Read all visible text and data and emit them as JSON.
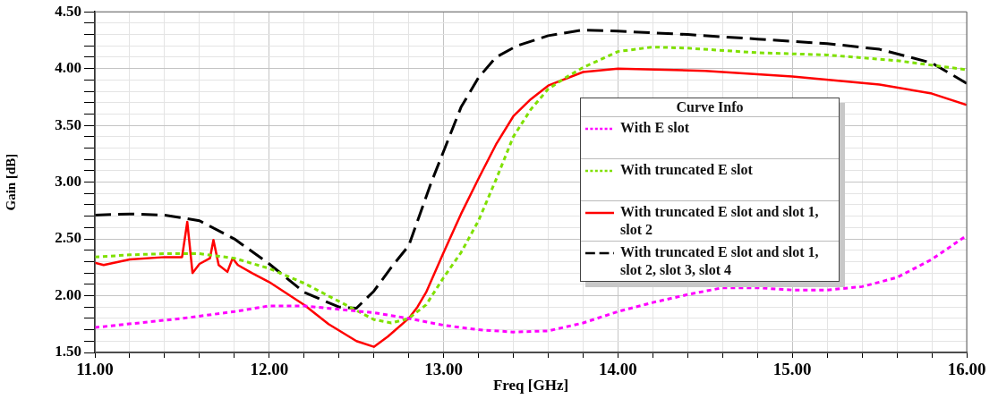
{
  "chart_data": {
    "type": "line",
    "xlabel": "Freq [GHz]",
    "ylabel": "Gain [dB]",
    "legend_title": "Curve Info",
    "legend": "right",
    "grid": true,
    "marker": "none",
    "xlim": [
      11,
      16
    ],
    "ylim": [
      1.5,
      4.5
    ],
    "xticks": [
      {
        "value": 11,
        "label": "11.00"
      },
      {
        "value": 11.2,
        "label": null
      },
      {
        "value": 11.4,
        "label": null
      },
      {
        "value": 11.6,
        "label": null
      },
      {
        "value": 11.8,
        "label": null
      },
      {
        "value": 12,
        "label": "12.00"
      },
      {
        "value": 12.2,
        "label": null
      },
      {
        "value": 12.4,
        "label": null
      },
      {
        "value": 12.6,
        "label": null
      },
      {
        "value": 12.8,
        "label": null
      },
      {
        "value": 13,
        "label": "13.00"
      },
      {
        "value": 13.2,
        "label": null
      },
      {
        "value": 13.4,
        "label": null
      },
      {
        "value": 13.6,
        "label": null
      },
      {
        "value": 13.8,
        "label": null
      },
      {
        "value": 14,
        "label": "14.00"
      },
      {
        "value": 14.2,
        "label": null
      },
      {
        "value": 14.4,
        "label": null
      },
      {
        "value": 14.6,
        "label": null
      },
      {
        "value": 14.8,
        "label": null
      },
      {
        "value": 15,
        "label": "15.00"
      },
      {
        "value": 15.2,
        "label": null
      },
      {
        "value": 15.4,
        "label": null
      },
      {
        "value": 15.6,
        "label": null
      },
      {
        "value": 15.8,
        "label": null
      },
      {
        "value": 16,
        "label": "16.00"
      }
    ],
    "yticks": [
      {
        "value": 1.5,
        "label": "1.50"
      },
      {
        "value": 1.6,
        "label": null
      },
      {
        "value": 1.7,
        "label": null
      },
      {
        "value": 1.8,
        "label": null
      },
      {
        "value": 1.9,
        "label": null
      },
      {
        "value": 2,
        "label": "2.00"
      },
      {
        "value": 2.1,
        "label": null
      },
      {
        "value": 2.2,
        "label": null
      },
      {
        "value": 2.3,
        "label": null
      },
      {
        "value": 2.4,
        "label": null
      },
      {
        "value": 2.5,
        "label": "2.50"
      },
      {
        "value": 2.6,
        "label": null
      },
      {
        "value": 2.7,
        "label": null
      },
      {
        "value": 2.8,
        "label": null
      },
      {
        "value": 2.9,
        "label": null
      },
      {
        "value": 3,
        "label": "3.00"
      },
      {
        "value": 3.1,
        "label": null
      },
      {
        "value": 3.2,
        "label": null
      },
      {
        "value": 3.3,
        "label": null
      },
      {
        "value": 3.4,
        "label": null
      },
      {
        "value": 3.5,
        "label": "3.50"
      },
      {
        "value": 3.6,
        "label": null
      },
      {
        "value": 3.7,
        "label": null
      },
      {
        "value": 3.8,
        "label": null
      },
      {
        "value": 3.9,
        "label": null
      },
      {
        "value": 4,
        "label": "4.00"
      },
      {
        "value": 4.1,
        "label": null
      },
      {
        "value": 4.2,
        "label": null
      },
      {
        "value": 4.3,
        "label": null
      },
      {
        "value": 4.4,
        "label": null
      },
      {
        "value": 4.5,
        "label": "4.50"
      }
    ],
    "series": [
      {
        "name": "With E slot",
        "color": "#ff00ff",
        "line_style": "dotted",
        "x": [
          11,
          11.5,
          11.8,
          12,
          12.2,
          12.4,
          12.6,
          12.8,
          13,
          13.2,
          13.4,
          13.6,
          13.8,
          14,
          14.2,
          14.4,
          14.6,
          14.8,
          15,
          15.2,
          15.4,
          15.6,
          15.8,
          16
        ],
        "values": [
          1.72,
          1.8,
          1.86,
          1.91,
          1.91,
          1.88,
          1.85,
          1.8,
          1.74,
          1.7,
          1.68,
          1.69,
          1.76,
          1.86,
          1.94,
          2.01,
          2.07,
          2.07,
          2.05,
          2.05,
          2.08,
          2.16,
          2.32,
          2.53
        ]
      },
      {
        "name": "With truncated E slot",
        "color": "#7fe000",
        "line_style": "dotted",
        "x": [
          11,
          11.2,
          11.4,
          11.6,
          11.8,
          12,
          12.2,
          12.4,
          12.5,
          12.6,
          12.7,
          12.8,
          12.9,
          13,
          13.1,
          13.2,
          13.3,
          13.4,
          13.5,
          13.6,
          13.7,
          13.8,
          14,
          14.2,
          14.4,
          14.8,
          15.2,
          15.6,
          16
        ],
        "values": [
          2.34,
          2.36,
          2.37,
          2.37,
          2.33,
          2.24,
          2.11,
          1.95,
          1.87,
          1.79,
          1.76,
          1.8,
          1.92,
          2.16,
          2.38,
          2.66,
          3.02,
          3.4,
          3.64,
          3.82,
          3.92,
          4.01,
          4.15,
          4.19,
          4.18,
          4.14,
          4.12,
          4.07,
          3.99
        ]
      },
      {
        "name": "With truncated E slot and slot 1, slot 2",
        "color": "#ff0000",
        "line_style": "solid",
        "x": [
          11,
          11.05,
          11.2,
          11.4,
          11.5,
          11.53,
          11.56,
          11.6,
          11.66,
          11.68,
          11.71,
          11.76,
          11.79,
          11.82,
          11.9,
          12,
          12.2,
          12.34,
          12.5,
          12.6,
          12.68,
          12.8,
          12.85,
          12.9,
          13,
          13.1,
          13.2,
          13.3,
          13.4,
          13.5,
          13.6,
          13.8,
          14,
          14.5,
          15,
          15.5,
          15.8,
          16
        ],
        "values": [
          2.29,
          2.27,
          2.32,
          2.34,
          2.34,
          2.65,
          2.2,
          2.28,
          2.33,
          2.49,
          2.27,
          2.21,
          2.33,
          2.27,
          2.2,
          2.12,
          1.92,
          1.75,
          1.6,
          1.55,
          1.64,
          1.8,
          1.9,
          2.03,
          2.38,
          2.72,
          3.03,
          3.33,
          3.58,
          3.73,
          3.85,
          3.97,
          4,
          3.98,
          3.93,
          3.86,
          3.78,
          3.68
        ]
      },
      {
        "name": "With truncated E slot and slot 1, slot 2, slot 3, slot 4",
        "color": "#000000",
        "line_style": "dashed",
        "x": [
          11,
          11.2,
          11.4,
          11.6,
          11.8,
          12,
          12.2,
          12.4,
          12.5,
          12.6,
          12.7,
          12.8,
          12.93,
          13.1,
          13.2,
          13.3,
          13.42,
          13.6,
          13.8,
          14,
          14.4,
          14.8,
          15.2,
          15.5,
          15.8,
          16
        ],
        "values": [
          2.71,
          2.72,
          2.71,
          2.66,
          2.5,
          2.28,
          2.03,
          1.9,
          1.89,
          2.04,
          2.25,
          2.44,
          3,
          3.66,
          3.92,
          4.1,
          4.2,
          4.29,
          4.34,
          4.33,
          4.3,
          4.26,
          4.22,
          4.17,
          4.05,
          3.87
        ]
      }
    ]
  }
}
